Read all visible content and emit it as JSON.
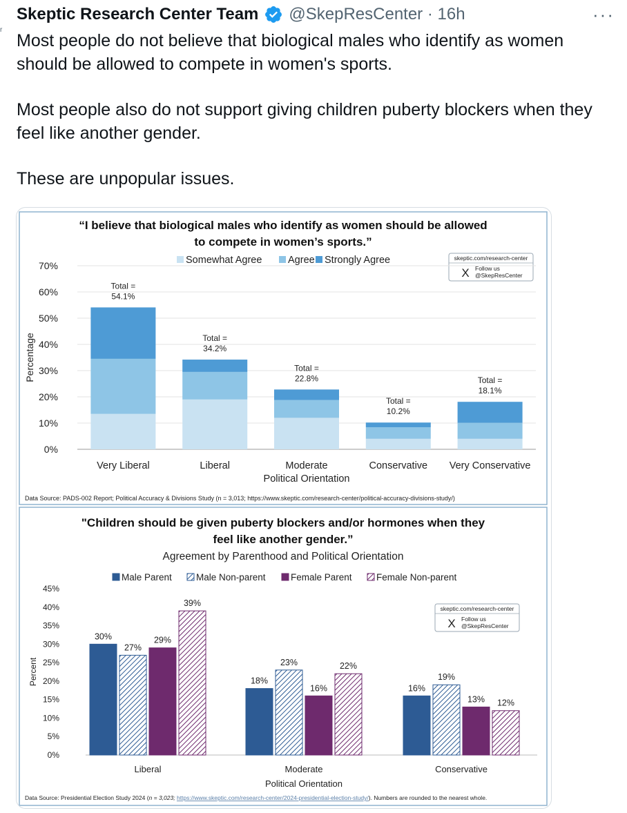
{
  "tweet": {
    "author_name": "Skeptic Research Center Team",
    "handle_time": "@SkepResCenter · 16h",
    "more_label": "···",
    "side_glyph": "r",
    "paragraphs": [
      "Most people do not believe that biological males who identify as women should be allowed to compete in women's sports.",
      "Most people also do not support giving children puberty blockers when they feel like another gender.",
      "These are unpopular issues."
    ]
  },
  "icons": {
    "verified": "verified-badge-icon",
    "more": "more-options-icon",
    "x_logo": "x-logo-icon"
  },
  "colors": {
    "verified_blue": "#1d9bf0",
    "somewhat_agree": "#c9e2f2",
    "agree": "#8ec5e6",
    "strongly_agree": "#4e9bd5",
    "male_parent": "#2d5b94",
    "female_parent": "#6e2a6d"
  },
  "badge": {
    "url": "skeptic.com/research-center",
    "follow": "Follow us",
    "handle": "@SkepResCenter"
  },
  "chart_data": [
    {
      "type": "bar",
      "stacked": true,
      "title_line1": "“I believe that biological males who identify as women should be allowed",
      "title_line2": "to compete in women’s sports.”",
      "xlabel": "Political Orientation",
      "ylabel": "Percentage",
      "ylim": [
        0,
        70
      ],
      "yticks": [
        "0%",
        "10%",
        "20%",
        "30%",
        "40%",
        "50%",
        "60%",
        "70%"
      ],
      "categories": [
        "Very Liberal",
        "Liberal",
        "Moderate",
        "Conservative",
        "Very Conservative"
      ],
      "series": [
        {
          "name": "Somewhat Agree",
          "values": [
            13.5,
            19,
            12,
            4,
            4
          ]
        },
        {
          "name": "Agree",
          "values": [
            21,
            10.5,
            6.8,
            4.4,
            6.1
          ]
        },
        {
          "name": "Strongly Agree",
          "values": [
            19.6,
            4.7,
            4,
            1.8,
            8
          ]
        }
      ],
      "total_prefix": "Total =",
      "totals": [
        "54.1%",
        "34.2%",
        "22.8%",
        "10.2%",
        "18.1%"
      ],
      "legend": "top",
      "grid": true,
      "source": "Data Source: PADS-002 Report; Political Accuracy & Divisions Study (n = 3,013; https://www.skeptic.com/research-center/political-accuracy-divisions-study/)"
    },
    {
      "type": "bar",
      "stacked": false,
      "title_line1": "\"Children should be given puberty blockers and/or hormones when they",
      "title_line2": "feel like another gender.”",
      "subtitle": "Agreement by Parenthood and Political Orientation",
      "xlabel": "Political Orientation",
      "ylabel": "Percent",
      "ylim": [
        0,
        45
      ],
      "yticks": [
        "0%",
        "5%",
        "10%",
        "15%",
        "20%",
        "25%",
        "30%",
        "35%",
        "40%",
        "45%"
      ],
      "categories": [
        "Liberal",
        "Moderate",
        "Conservative"
      ],
      "series": [
        {
          "name": "Male Parent",
          "values": [
            30,
            18,
            16
          ],
          "labels": [
            "30%",
            "18%",
            "16%"
          ]
        },
        {
          "name": "Male Non-parent",
          "values": [
            27,
            23,
            19
          ],
          "labels": [
            "27%",
            "23%",
            "19%"
          ]
        },
        {
          "name": "Female Parent",
          "values": [
            29,
            16,
            13
          ],
          "labels": [
            "29%",
            "16%",
            "13%"
          ]
        },
        {
          "name": "Female Non-parent",
          "values": [
            39,
            22,
            12
          ],
          "labels": [
            "39%",
            "22%",
            "12%"
          ]
        }
      ],
      "legend": "top",
      "grid": false,
      "source_prefix": "Data Source: Presidential Election Study 2024 (",
      "source_n": "n = 3,023; ",
      "source_link": "https://www.skeptic.com/research-center/2024-presidential-election-study/",
      "source_suffix": "). Numbers are rounded to the nearest whole."
    }
  ]
}
